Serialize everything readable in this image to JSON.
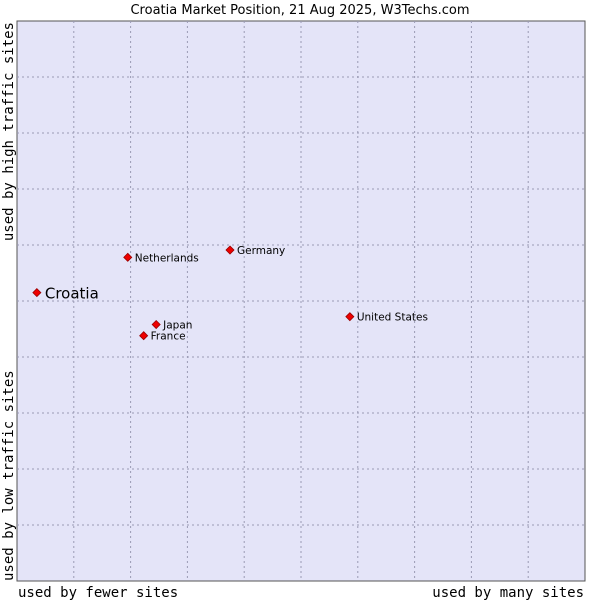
{
  "chart_data": {
    "type": "scatter",
    "title": "Croatia Market Position, 21 Aug 2025, W3Techs.com",
    "xlabel_left": "used by fewer sites",
    "xlabel_right": "used by many sites",
    "ylabel_bottom": "used by low traffic sites",
    "ylabel_top": "used by high traffic sites",
    "xlim": [
      0,
      100
    ],
    "ylim": [
      0,
      100
    ],
    "grid": true,
    "colors": {
      "plot_background": "#e4e4f8",
      "grid": "#9a9ab4",
      "marker": "#ee0000",
      "marker_outline": "#990000"
    },
    "points": [
      {
        "label": "Croatia",
        "x": 3.5,
        "y": 51.5,
        "highlight": true
      },
      {
        "label": "Netherlands",
        "x": 19.5,
        "y": 57.8,
        "highlight": false
      },
      {
        "label": "Germany",
        "x": 37.5,
        "y": 59.1,
        "highlight": false
      },
      {
        "label": "Japan",
        "x": 24.5,
        "y": 45.8,
        "highlight": false
      },
      {
        "label": "France",
        "x": 22.3,
        "y": 43.8,
        "highlight": false
      },
      {
        "label": "United States",
        "x": 58.6,
        "y": 47.2,
        "highlight": false
      }
    ]
  }
}
